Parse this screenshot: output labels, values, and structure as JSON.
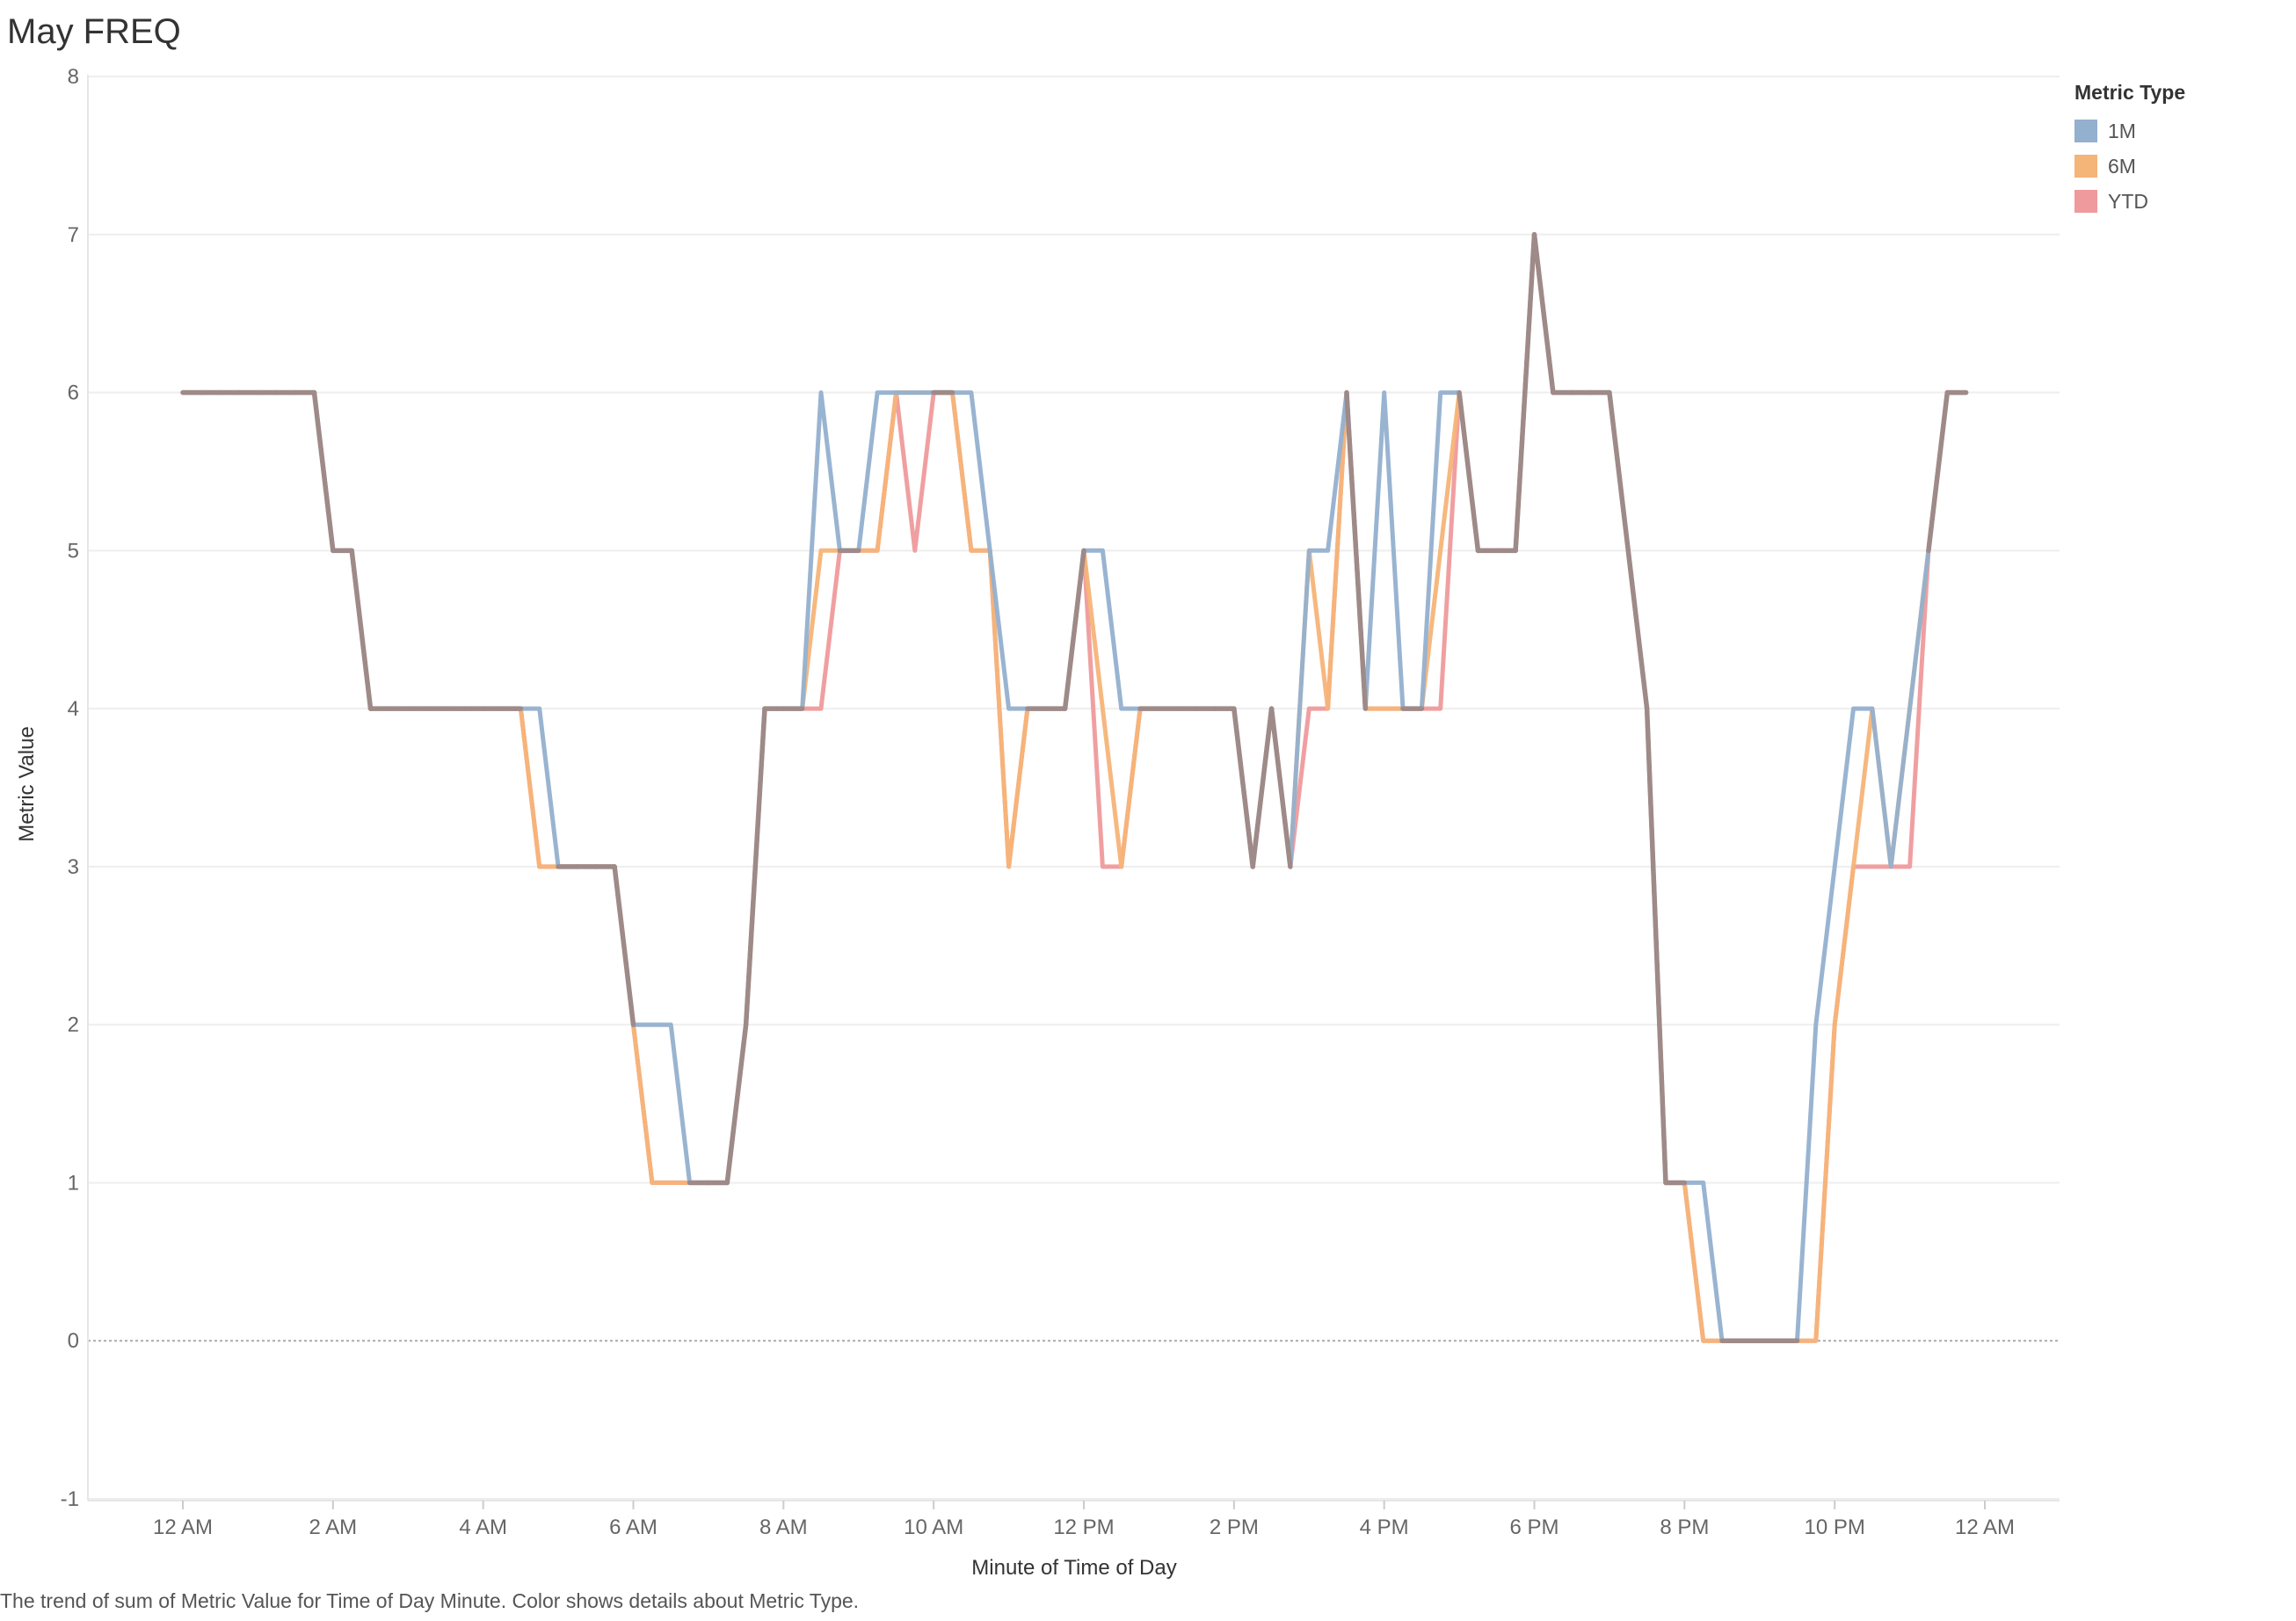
{
  "colors": {
    "1M": "#93b0cf",
    "6M": "#f5b478",
    "YTD": "#ef9a9c",
    "gridline": "#eeeeee",
    "zero_line": "#aaaaaa"
  },
  "chart_data": {
    "type": "line",
    "title": "May FREQ",
    "xlabel": "Minute of Time of Day",
    "ylabel": "Metric Value",
    "ylim": [
      -1,
      8
    ],
    "yticks": [
      -1,
      0,
      1,
      2,
      3,
      4,
      5,
      6,
      7,
      8
    ],
    "xlim": [
      "00:00",
      "24:00"
    ],
    "xticks": [
      "00:00",
      "02:00",
      "04:00",
      "06:00",
      "08:00",
      "10:00",
      "12:00",
      "14:00",
      "16:00",
      "18:00",
      "20:00",
      "22:00",
      "24:00"
    ],
    "xtick_labels": [
      "12 AM",
      "2 AM",
      "4 AM",
      "6 AM",
      "8 AM",
      "10 AM",
      "12 PM",
      "2 PM",
      "4 PM",
      "6 PM",
      "8 PM",
      "10 PM",
      "12 AM"
    ],
    "grid": true,
    "legend": {
      "title": "Metric Type",
      "position": "right"
    },
    "x": [
      "00:00",
      "00:15",
      "00:30",
      "00:45",
      "01:00",
      "01:15",
      "01:30",
      "01:45",
      "02:00",
      "02:15",
      "02:30",
      "02:45",
      "03:00",
      "03:15",
      "03:30",
      "03:45",
      "04:00",
      "04:15",
      "04:30",
      "04:45",
      "05:00",
      "05:15",
      "05:30",
      "05:45",
      "06:00",
      "06:15",
      "06:30",
      "06:45",
      "07:00",
      "07:15",
      "07:30",
      "07:45",
      "08:00",
      "08:15",
      "08:30",
      "08:45",
      "09:00",
      "09:15",
      "09:30",
      "09:45",
      "10:00",
      "10:15",
      "10:30",
      "10:45",
      "11:00",
      "11:15",
      "11:30",
      "11:45",
      "12:00",
      "12:15",
      "12:30",
      "12:45",
      "13:00",
      "13:15",
      "13:30",
      "13:45",
      "14:00",
      "14:15",
      "14:30",
      "14:45",
      "15:00",
      "15:15",
      "15:30",
      "15:45",
      "16:00",
      "16:15",
      "16:30",
      "16:45",
      "17:00",
      "17:15",
      "17:30",
      "17:45",
      "18:00",
      "18:15",
      "18:30",
      "18:45",
      "19:00",
      "19:15",
      "19:30",
      "19:45",
      "20:00",
      "20:15",
      "20:30",
      "20:45",
      "21:00",
      "21:15",
      "21:30",
      "21:45",
      "22:00",
      "22:15",
      "22:30",
      "22:45",
      "23:00",
      "23:15",
      "23:30",
      "23:45"
    ],
    "series": [
      {
        "name": "1M",
        "color": "#93b0cf",
        "values": [
          6,
          6,
          6,
          6,
          6,
          6,
          6,
          6,
          5,
          5,
          4,
          4,
          4,
          4,
          4,
          4,
          4,
          4,
          4,
          4,
          3,
          3,
          3,
          3,
          2,
          2,
          2,
          1,
          1,
          1,
          2,
          4,
          4,
          4,
          6,
          5,
          5,
          6,
          6,
          6,
          6,
          6,
          6,
          5,
          4,
          4,
          4,
          4,
          5,
          5,
          4,
          4,
          4,
          4,
          4,
          4,
          4,
          3,
          4,
          3,
          5,
          5,
          6,
          4,
          6,
          4,
          4,
          6,
          6,
          5,
          5,
          5,
          7,
          6,
          6,
          6,
          6,
          5,
          4,
          1,
          1,
          1,
          0,
          0,
          0,
          0,
          0,
          2,
          3,
          4,
          4,
          3,
          4,
          5,
          6,
          6
        ]
      },
      {
        "name": "6M",
        "color": "#f5b478",
        "values": [
          6,
          6,
          6,
          6,
          6,
          6,
          6,
          6,
          5,
          5,
          4,
          4,
          4,
          4,
          4,
          4,
          4,
          4,
          4,
          3,
          3,
          3,
          3,
          3,
          2,
          1,
          1,
          1,
          1,
          1,
          2,
          4,
          4,
          4,
          5,
          5,
          5,
          5,
          6,
          6,
          6,
          6,
          5,
          5,
          3,
          4,
          4,
          4,
          5,
          4,
          3,
          4,
          4,
          4,
          4,
          4,
          4,
          3,
          4,
          3,
          5,
          4,
          6,
          4,
          4,
          4,
          4,
          5,
          6,
          5,
          5,
          5,
          7,
          6,
          6,
          6,
          6,
          5,
          4,
          1,
          1,
          0,
          0,
          0,
          0,
          0,
          0,
          0,
          2,
          3,
          4,
          3,
          4,
          5,
          6,
          6
        ]
      },
      {
        "name": "YTD",
        "color": "#ef9a9c",
        "values": [
          6,
          6,
          6,
          6,
          6,
          6,
          6,
          6,
          5,
          5,
          4,
          4,
          4,
          4,
          4,
          4,
          4,
          4,
          4,
          3,
          3,
          3,
          3,
          3,
          2,
          1,
          1,
          1,
          1,
          1,
          2,
          4,
          4,
          4,
          4,
          5,
          5,
          5,
          6,
          5,
          6,
          6,
          5,
          5,
          3,
          4,
          4,
          4,
          5,
          3,
          3,
          4,
          4,
          4,
          4,
          4,
          4,
          3,
          4,
          3,
          4,
          4,
          6,
          4,
          4,
          4,
          4,
          4,
          6,
          5,
          5,
          5,
          7,
          6,
          6,
          6,
          6,
          5,
          4,
          1,
          1,
          0,
          0,
          0,
          0,
          0,
          0,
          0,
          2,
          3,
          3,
          3,
          3,
          5,
          6,
          6
        ]
      }
    ],
    "overlay_color": "#9e8a88",
    "caption": "The trend of sum of Metric Value for Time of Day Minute.  Color shows details about Metric Type."
  }
}
